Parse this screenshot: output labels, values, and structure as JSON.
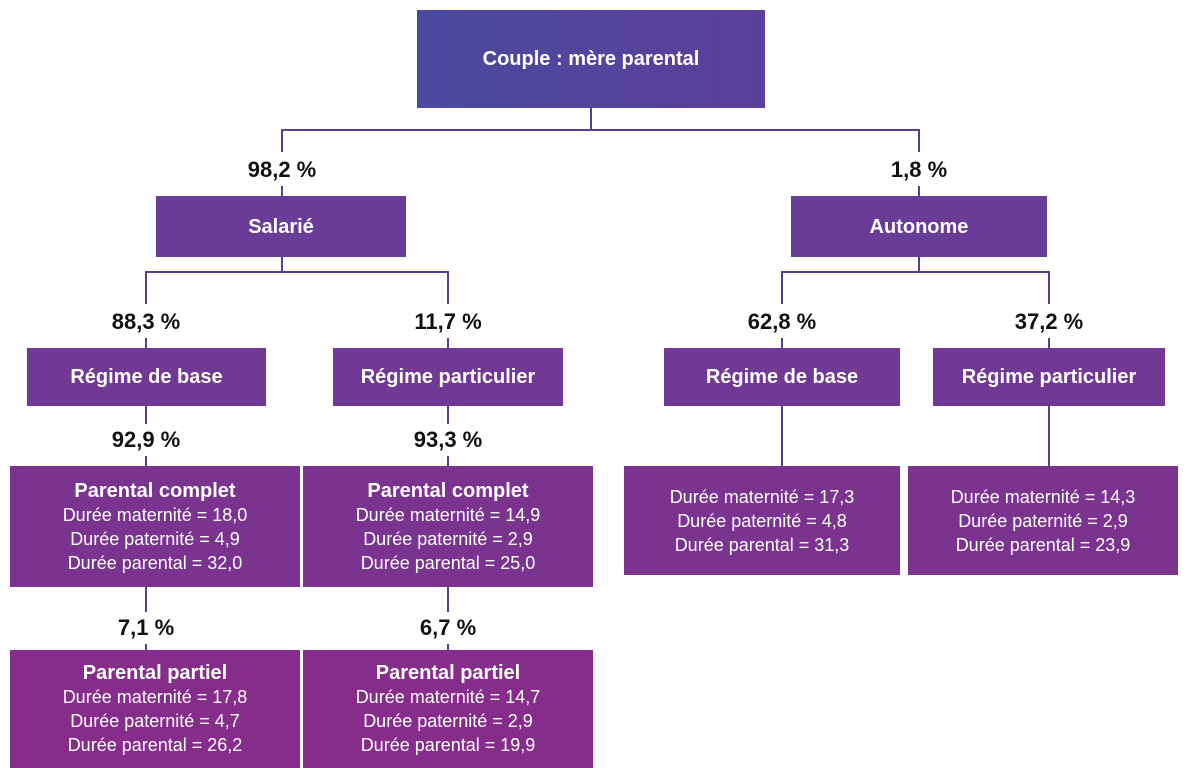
{
  "nodes": [
    {
      "title": "Couple : mère parental"
    },
    {
      "share": "98,2 %",
      "title": "Salarié"
    },
    {
      "share": "1,8 %",
      "title": "Autonome"
    },
    {
      "share": "88,3 %",
      "title": "Régime de base"
    },
    {
      "share": "11,7 %",
      "title": "Régime particulier"
    },
    {
      "share": "62,8 %",
      "title": "Régime de base"
    },
    {
      "share": "37,2 %",
      "title": "Régime particulier"
    },
    {
      "share": "92,9 %",
      "title": "Parental complet",
      "lines": [
        "Durée maternité = 18,0",
        "Durée paternité = 4,9",
        "Durée parental = 32,0"
      ]
    },
    {
      "share": "93,3 %",
      "title": "Parental complet",
      "lines": [
        "Durée maternité = 14,9",
        "Durée paternité = 2,9",
        "Durée parental = 25,0"
      ]
    },
    {
      "lines": [
        "Durée maternité = 17,3",
        "Durée paternité = 4,8",
        "Durée parental = 31,3"
      ]
    },
    {
      "lines": [
        "Durée maternité = 14,3",
        "Durée paternité = 2,9",
        "Durée parental = 23,9"
      ]
    },
    {
      "share": "7,1 %",
      "title": "Parental partiel",
      "lines": [
        "Durée maternité = 17,8",
        "Durée paternité = 4,7",
        "Durée parental = 26,2"
      ]
    },
    {
      "share": "6,7 %",
      "title": "Parental partiel",
      "lines": [
        "Durée maternité = 14,7",
        "Durée paternité = 2,9",
        "Durée parental = 19,9"
      ]
    }
  ]
}
